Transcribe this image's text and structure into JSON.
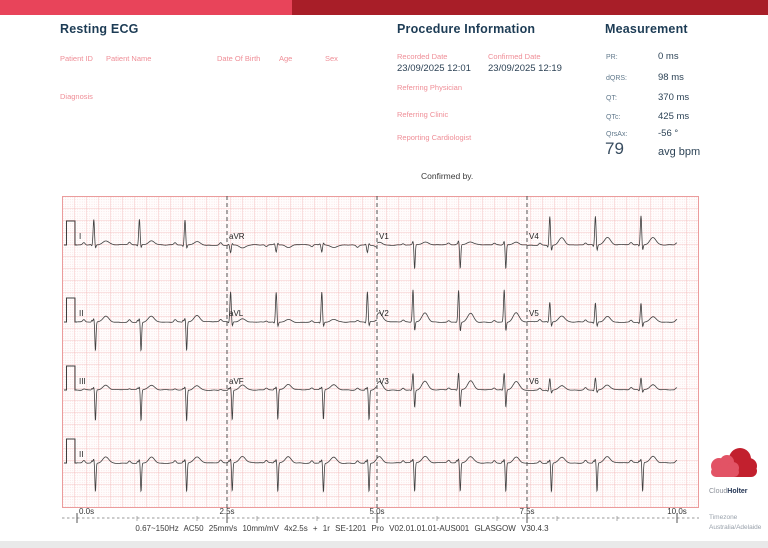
{
  "header": {
    "bar_primary_color": "#e8445a",
    "bar_secondary_color": "#a81e28"
  },
  "patient_section": {
    "title": "Resting ECG",
    "patient_id_label": "Patient ID",
    "patient_name_label": "Patient Name",
    "dob_label": "Date Of Birth",
    "age_label": "Age",
    "sex_label": "Sex",
    "diagnosis_label": "Diagnosis"
  },
  "procedure_section": {
    "title": "Procedure Information",
    "recorded_date": {
      "label": "Recorded Date",
      "value": "23/09/2025 12:01"
    },
    "confirmed_date": {
      "label": "Confirmed Date",
      "value": "23/09/2025 12:19"
    },
    "referring_physician_label": "Referring Physician",
    "referring_clinic_label": "Referring Clinic",
    "reporting_cardiologist_label": "Reporting Cardiologist"
  },
  "measurement_section": {
    "title": "Measurement",
    "rows": [
      {
        "label": "PR:",
        "value": "0 ms"
      },
      {
        "label": "dQRS:",
        "value": "98 ms"
      },
      {
        "label": "QT:",
        "value": "370 ms"
      },
      {
        "label": "QTc:",
        "value": "425 ms"
      },
      {
        "label": "QrsAx:",
        "value": "-56 °"
      }
    ],
    "heart_rate": {
      "value": "79",
      "unit": "avg bpm"
    }
  },
  "confirmed_by_label": "Confirmed by.",
  "chart_data": {
    "type": "line",
    "title": "12-lead resting ECG, 4x2.5s columns + 1 rhythm strip (lead II)",
    "duration_s": 10,
    "paper_speed": "25mm/s",
    "gain": "10mm/mV",
    "rr_interval_s": 0.76,
    "measurements": {
      "pr_ms": 0,
      "dqrs_ms": 98,
      "qt_ms": 370,
      "qtc_ms": 425,
      "qrs_axis_deg": -56,
      "avg_bpm": 79
    },
    "time_labels": [
      "0.0s",
      "2.5s",
      "5.0s",
      "7.5s",
      "10.0s"
    ],
    "rows": [
      [
        "I",
        "aVR",
        "V1",
        "V4"
      ],
      [
        "II",
        "aVL",
        "V2",
        "V5"
      ],
      [
        "III",
        "aVF",
        "V3",
        "V6"
      ],
      [
        "II"
      ]
    ],
    "lead_morphology": {
      "I": {
        "p": 1.0,
        "q": -0.6,
        "r": 10.5,
        "s": -1.5,
        "t": 1.6
      },
      "aVR": {
        "p": -0.8,
        "q": 0.4,
        "r": -3.0,
        "s": 0.8,
        "t": -1.2
      },
      "V1": {
        "p": 0.6,
        "q": 0.2,
        "r": 1.6,
        "s": -10.0,
        "t": 1.2
      },
      "V4": {
        "p": 0.9,
        "q": -0.8,
        "r": 12.0,
        "s": -2.5,
        "t": 3.0
      },
      "II": {
        "p": 1.0,
        "q": 0.8,
        "r": 1.6,
        "s": -12.0,
        "t": 2.6
      },
      "aVL": {
        "p": 0.6,
        "q": -0.5,
        "r": 12.5,
        "s": -2.0,
        "t": 1.2
      },
      "V2": {
        "p": 0.7,
        "q": 0.0,
        "r": 13.5,
        "s": -4.0,
        "t": 3.8
      },
      "V5": {
        "p": 0.9,
        "q": -0.5,
        "r": 8.0,
        "s": -2.0,
        "t": 2.4
      },
      "III": {
        "p": 0.4,
        "q": 0.6,
        "r": 1.2,
        "s": -13.0,
        "t": 1.8
      },
      "aVF": {
        "p": 0.7,
        "q": 0.7,
        "r": 1.3,
        "s": -12.5,
        "t": 2.2
      },
      "V3": {
        "p": 0.8,
        "q": -0.3,
        "r": 7.0,
        "s": -7.5,
        "t": 3.6
      },
      "V6": {
        "p": 0.9,
        "q": -0.4,
        "r": 5.0,
        "s": -1.2,
        "t": 2.0
      }
    },
    "grid_bg_color": "#fffcfc",
    "grid_dot_color": "#efc3c3",
    "grid_major_color": "#f3b6b6",
    "grid_border_color": "#eb9c9c",
    "trace_color": "#3f3f3f",
    "separator_color": "#555555"
  },
  "footer": {
    "device_text": "0.67~150Hz  AC50  25mm/s 10mm/mV  4x2.5s + 1r  SE-1201 Pro V02.01.01.01-AUS001  GLASGOW V30.4.3",
    "timezone_label": "Timezone",
    "timezone_value": "Australia/Adelaide"
  },
  "logo": {
    "prefix": "Cloud",
    "suffix": "Holter"
  }
}
